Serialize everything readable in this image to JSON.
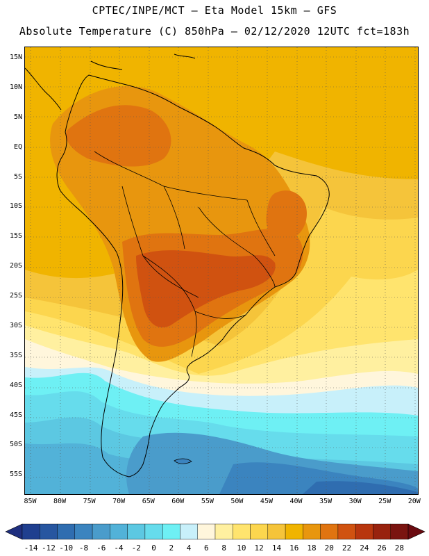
{
  "header": {
    "line1": "CPTEC/INPE/MCT –  Eta Model 15km – GFS",
    "line2": "Absolute Temperature (C) 850hPa – 02/12/2020 12UTC fct=183h"
  },
  "map": {
    "lat_labels": [
      "15N",
      "10N",
      "5N",
      "EQ",
      "5S",
      "10S",
      "15S",
      "20S",
      "25S",
      "30S",
      "35S",
      "40S",
      "45S",
      "50S",
      "55S"
    ],
    "lon_labels": [
      "85W",
      "80W",
      "75W",
      "70W",
      "65W",
      "60W",
      "55W",
      "50W",
      "45W",
      "40W",
      "35W",
      "30W",
      "25W",
      "20W"
    ],
    "lat_range": [
      17,
      -58
    ],
    "lon_range": [
      -86,
      -19.5
    ]
  },
  "colorbar": {
    "levels": [
      "-14",
      "-12",
      "-10",
      "-8",
      "-6",
      "-4",
      "-2",
      "0",
      "2",
      "4",
      "6",
      "8",
      "10",
      "12",
      "14",
      "16",
      "18",
      "20",
      "22",
      "24",
      "26",
      "28"
    ],
    "colors": [
      "#1f3f8f",
      "#2756a0",
      "#2f6db0",
      "#3b84bf",
      "#4a9ccb",
      "#52b2d8",
      "#5cc8e2",
      "#66dcec",
      "#6ef0f4",
      "#c8f0fa",
      "#fff6dc",
      "#fff0a0",
      "#ffe46e",
      "#fcd64e",
      "#f5c43a",
      "#f0b400",
      "#e8960e",
      "#e07410",
      "#d05210",
      "#b8360e",
      "#98220e",
      "#7a1410"
    ],
    "end_left_color": "#1f2f7f",
    "end_right_color": "#6a0a10"
  }
}
